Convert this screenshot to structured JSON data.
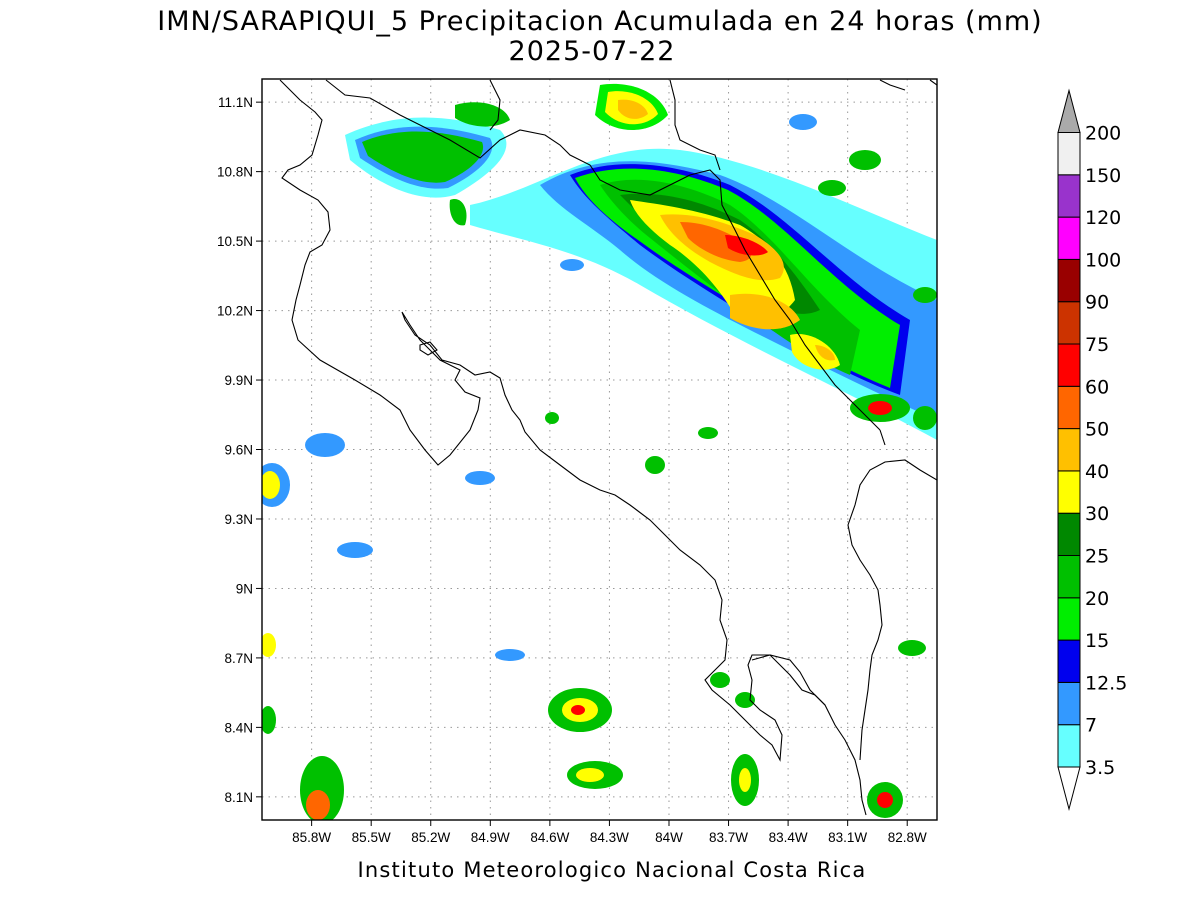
{
  "title": {
    "line1": "IMN/SARAPIQUI_5 Precipitacion Acumulada en 24 horas (mm)",
    "line2": "2025-07-22"
  },
  "footer": "Instituto Meteorologico Nacional Costa Rica",
  "map": {
    "lon_range": [
      -86.05,
      -82.65
    ],
    "lat_range": [
      8.0,
      11.2
    ],
    "x_ticks": [
      {
        "value": -85.8,
        "label": "85.8W"
      },
      {
        "value": -85.5,
        "label": "85.5W"
      },
      {
        "value": -85.2,
        "label": "85.2W"
      },
      {
        "value": -84.9,
        "label": "84.9W"
      },
      {
        "value": -84.6,
        "label": "84.6W"
      },
      {
        "value": -84.3,
        "label": "84.3W"
      },
      {
        "value": -84.0,
        "label": "84W"
      },
      {
        "value": -83.7,
        "label": "83.7W"
      },
      {
        "value": -83.4,
        "label": "83.4W"
      },
      {
        "value": -83.1,
        "label": "83.1W"
      },
      {
        "value": -82.8,
        "label": "82.8W"
      }
    ],
    "y_ticks": [
      {
        "value": 11.1,
        "label": "11.1N"
      },
      {
        "value": 10.8,
        "label": "10.8N"
      },
      {
        "value": 10.5,
        "label": "10.5N"
      },
      {
        "value": 10.2,
        "label": "10.2N"
      },
      {
        "value": 9.9,
        "label": "9.9N"
      },
      {
        "value": 9.6,
        "label": "9.6N"
      },
      {
        "value": 9.3,
        "label": "9.3N"
      },
      {
        "value": 9.0,
        "label": "9N"
      },
      {
        "value": 8.7,
        "label": "8.7N"
      },
      {
        "value": 8.4,
        "label": "8.4N"
      },
      {
        "value": 8.1,
        "label": "8.1N"
      }
    ],
    "grid": "dotted"
  },
  "colorbar": {
    "levels": [
      {
        "label": "3.5",
        "color": "#66ffff"
      },
      {
        "label": "7",
        "color": "#3399ff"
      },
      {
        "label": "12.5",
        "color": "#0000ee"
      },
      {
        "label": "15",
        "color": "#00ee00"
      },
      {
        "label": "20",
        "color": "#00c000"
      },
      {
        "label": "25",
        "color": "#008800"
      },
      {
        "label": "30",
        "color": "#ffff00"
      },
      {
        "label": "40",
        "color": "#ffc000"
      },
      {
        "label": "50",
        "color": "#ff6600"
      },
      {
        "label": "60",
        "color": "#ff0000"
      },
      {
        "label": "75",
        "color": "#cc3300"
      },
      {
        "label": "90",
        "color": "#990000"
      },
      {
        "label": "100",
        "color": "#ff00ff"
      },
      {
        "label": "120",
        "color": "#9933cc"
      },
      {
        "label": "150",
        "color": "#f0f0f0"
      },
      {
        "label": "200",
        "color": "#aaaaaa"
      }
    ]
  }
}
